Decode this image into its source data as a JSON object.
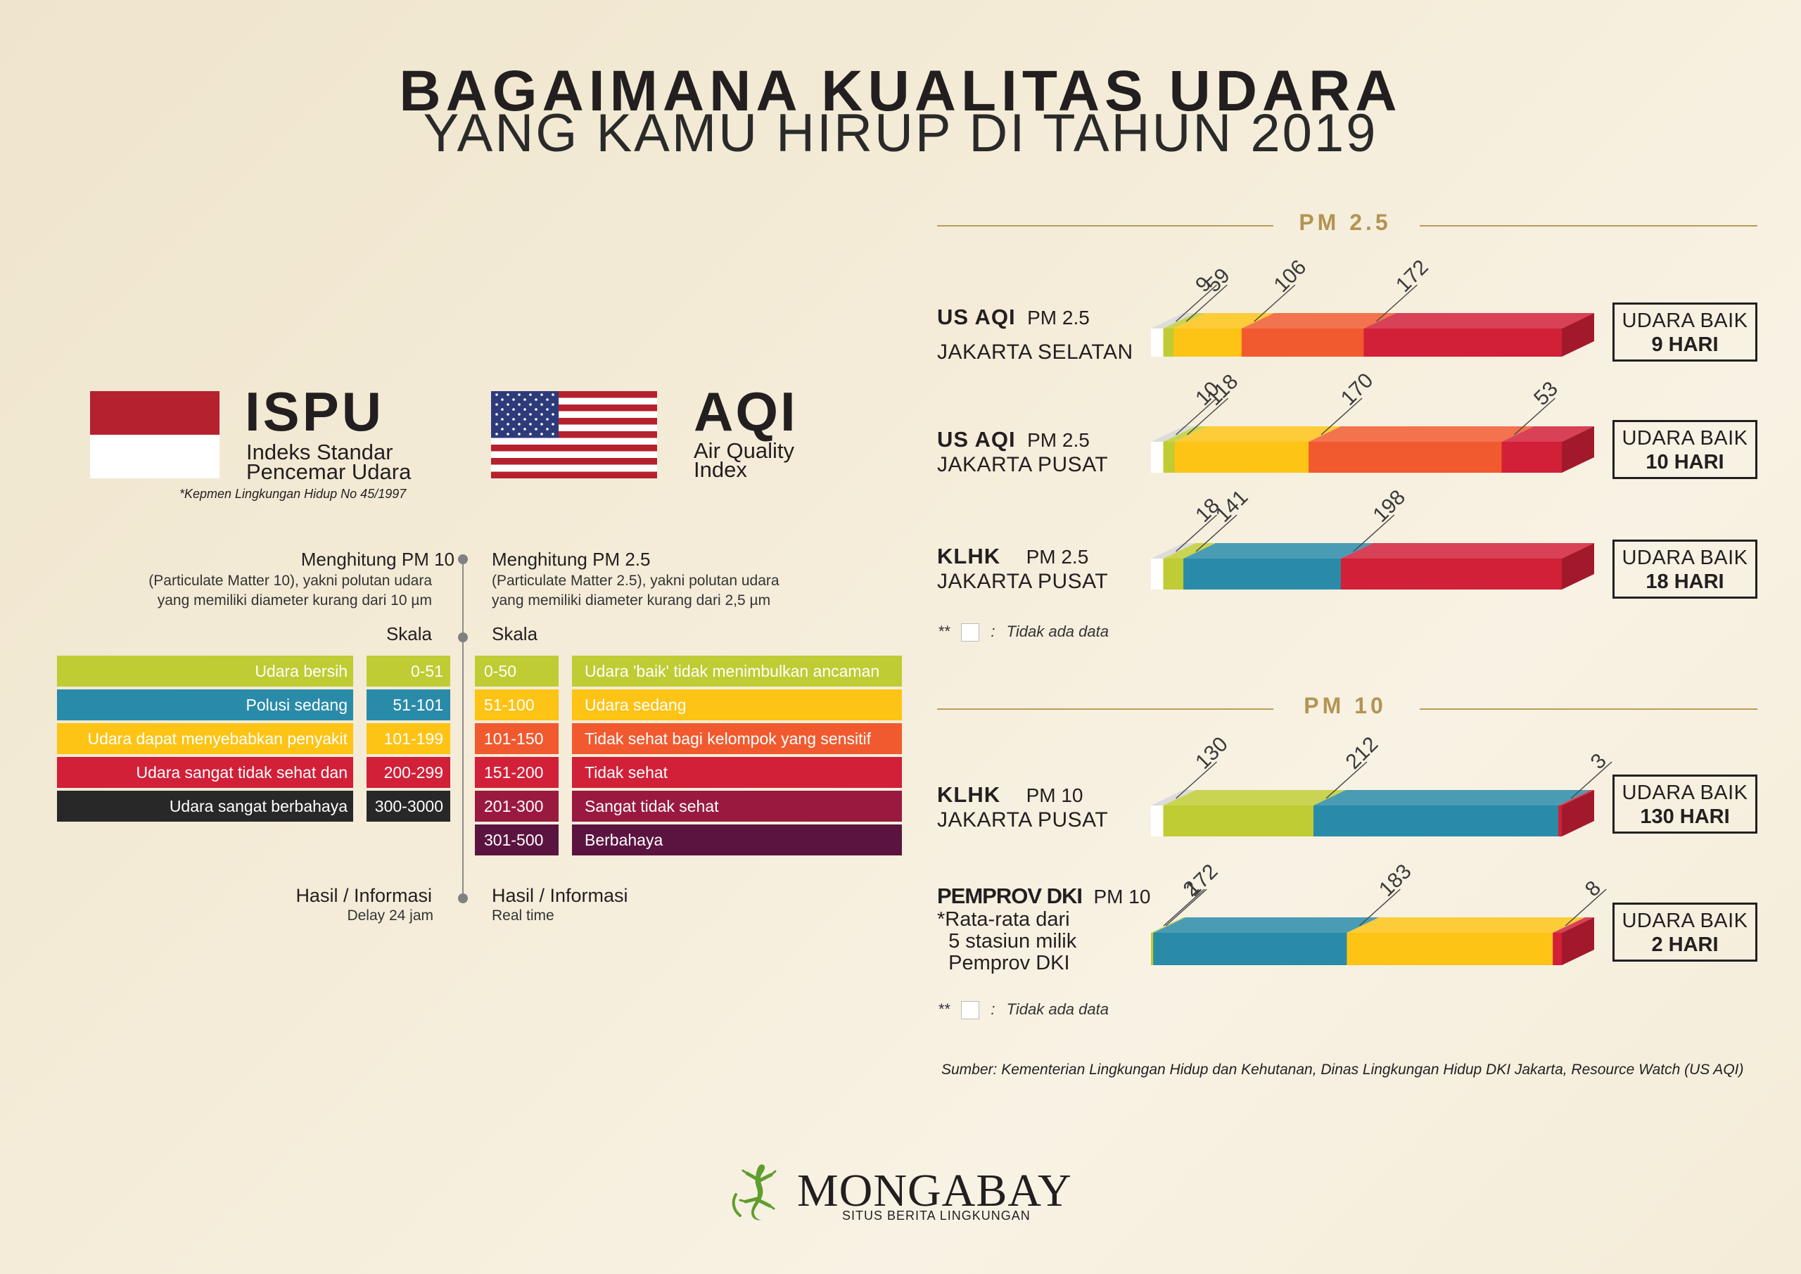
{
  "title": {
    "line1": "BAGAIMANA KUALITAS UDARA",
    "line2": "YANG KAMU HIRUP DI TAHUN 2019"
  },
  "ispu": {
    "title": "ISPU",
    "subtitle1": "Indeks Standar",
    "subtitle2": "Pencemar Udara",
    "note": "*Kepmen Lingkungan Hidup No 45/1997"
  },
  "aqi": {
    "title": "AQI",
    "subtitle1": "Air Quality",
    "subtitle2": "Index"
  },
  "calc": {
    "pm10_head": "Menghitung PM 10",
    "pm10_desc1": "(Particulate Matter 10), yakni polutan udara",
    "pm10_desc2": "yang memiliki diameter kurang dari 10 µm",
    "pm25_head": "Menghitung PM 2.5",
    "pm25_desc1": "(Particulate Matter 2.5), yakni polutan udara",
    "pm25_desc2": "yang memiliki diameter kurang dari 2,5 µm",
    "skala": "Skala",
    "hasil": "Hasil / Informasi",
    "hasil_l_sub": "Delay 24 jam",
    "hasil_r_sub": "Real time"
  },
  "ispu_scale": [
    {
      "label": "Udara bersih",
      "range": "0-51",
      "color": "#bfcc33"
    },
    {
      "label": "Polusi sedang",
      "range": "51-101",
      "color": "#2a8ba8"
    },
    {
      "label": "Udara dapat menyebabkan penyakit",
      "range": "101-199",
      "color": "#fdc315"
    },
    {
      "label": "Udara sangat tidak sehat dan",
      "range": "200-299",
      "color": "#d12038"
    },
    {
      "label": "Udara sangat berbahaya",
      "range": "300-3000",
      "color": "#282828"
    }
  ],
  "aqi_scale": [
    {
      "range": "0-50",
      "label": "Udara 'baik' tidak menimbulkan ancaman",
      "color": "#bfcc33"
    },
    {
      "range": "51-100",
      "label": "Udara sedang",
      "color": "#fdc315"
    },
    {
      "range": "101-150",
      "label": "Tidak sehat bagi kelompok yang sensitif",
      "color": "#f15a2f"
    },
    {
      "range": "151-200",
      "label": "Tidak sehat",
      "color": "#d12038"
    },
    {
      "range": "201-300",
      "label": "Sangat tidak sehat",
      "color": "#9a1a3f"
    },
    {
      "range": "301-500",
      "label": "Berbahaya",
      "color": "#5b1440"
    }
  ],
  "pm25_label": "PM 2.5",
  "pm10_label": "PM 10",
  "no_data_note": "Tidak ada data",
  "no_data_prefix": "**",
  "box_label": "UDARA BAIK",
  "source": "Sumber: Kementerian Lingkungan Hidup dan Kehutanan, Dinas Lingkungan Hidup DKI Jakarta, Resource Watch (US AQI)",
  "logo": {
    "name": "MONGABAY",
    "tagline": "SITUS BERITA LINGKUNGAN"
  },
  "colors": {
    "no_data": "#ffffff",
    "good": "#bfcc33",
    "moderate_blue": "#2a8ba8",
    "moderate_yellow": "#fdc315",
    "sensitive": "#f15a2f",
    "unhealthy": "#d12038",
    "accent_gold": "#b39453"
  },
  "chart_data": [
    {
      "type": "bar",
      "section": "PM 2.5",
      "source": "US AQI",
      "param": "PM 2.5",
      "location": "JAKARTA SELATAN",
      "series": [
        {
          "name": "Tidak ada data",
          "value": 1,
          "color": "#ffffff"
        },
        {
          "name": "",
          "value": 9,
          "color": "#bfcc33"
        },
        {
          "name": "",
          "value": 59,
          "color": "#fdc315"
        },
        {
          "name": "",
          "value": 106,
          "color": "#f15a2f"
        },
        {
          "name": "",
          "value": 172,
          "color": "#d12038"
        }
      ],
      "good_days": "9 HARI"
    },
    {
      "type": "bar",
      "section": "PM 2.5",
      "source": "US AQI",
      "param": "PM 2.5",
      "location": "JAKARTA PUSAT",
      "series": [
        {
          "name": "Tidak ada data",
          "value": 1,
          "color": "#ffffff"
        },
        {
          "name": "",
          "value": 10,
          "color": "#bfcc33"
        },
        {
          "name": "",
          "value": 118,
          "color": "#fdc315"
        },
        {
          "name": "",
          "value": 170,
          "color": "#f15a2f"
        },
        {
          "name": "",
          "value": 53,
          "color": "#d12038"
        }
      ],
      "good_days": "10 HARI"
    },
    {
      "type": "bar",
      "section": "PM 2.5",
      "source": "KLHK",
      "param": "PM 2.5",
      "location": "JAKARTA PUSAT",
      "series": [
        {
          "name": "Tidak ada data",
          "value": 1,
          "color": "#ffffff"
        },
        {
          "name": "",
          "value": 18,
          "color": "#bfcc33"
        },
        {
          "name": "",
          "value": 141,
          "color": "#2a8ba8"
        },
        {
          "name": "",
          "value": 198,
          "color": "#d12038"
        }
      ],
      "good_days": "18 HARI"
    },
    {
      "type": "bar",
      "section": "PM 10",
      "source": "KLHK",
      "param": "PM 10",
      "location": "JAKARTA PUSAT",
      "series": [
        {
          "name": "Tidak ada data",
          "value": 1,
          "color": "#ffffff"
        },
        {
          "name": "",
          "value": 130,
          "color": "#bfcc33"
        },
        {
          "name": "",
          "value": 212,
          "color": "#2a8ba8"
        },
        {
          "name": "",
          "value": 3,
          "color": "#d12038"
        }
      ],
      "good_days": "130 HARI"
    },
    {
      "type": "bar",
      "section": "PM 10",
      "source": "PEMPROV DKI",
      "param": "PM 10",
      "location": "*Rata-rata dari\n  5 stasiun milik\n  Pemprov DKI",
      "series": [
        {
          "name": "",
          "value": 2,
          "color": "#bfcc33"
        },
        {
          "name": "",
          "value": 172,
          "color": "#2a8ba8"
        },
        {
          "name": "",
          "value": 183,
          "color": "#fdc315"
        },
        {
          "name": "",
          "value": 8,
          "color": "#d12038"
        }
      ],
      "good_days": "2 HARI"
    }
  ]
}
